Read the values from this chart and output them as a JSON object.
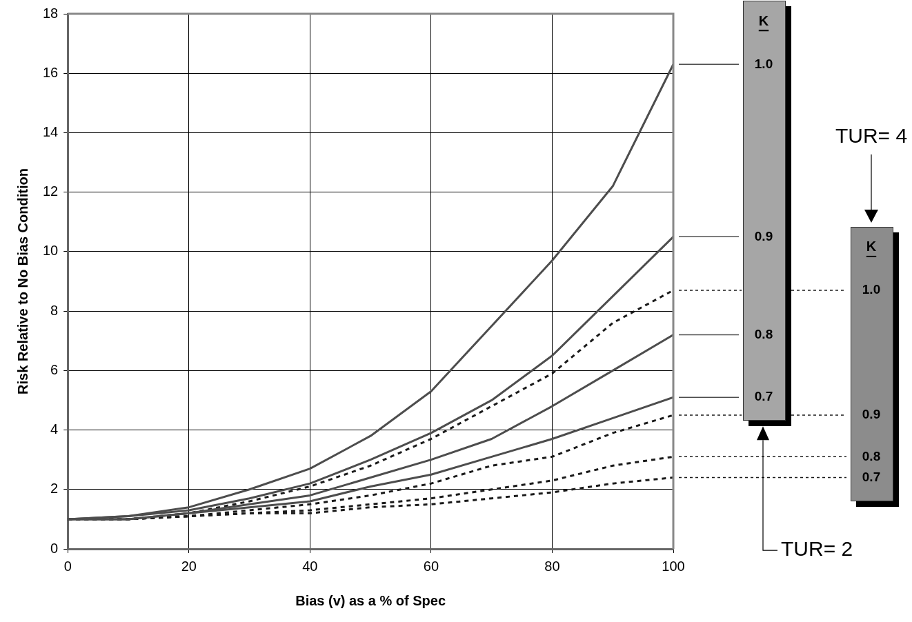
{
  "chart_data": {
    "type": "line",
    "xlabel": "Bias (v) as a % of Spec",
    "ylabel": "Risk Relative to No Bias Condition",
    "legend_title": "K",
    "annotations": [
      "TUR= 2",
      "TUR= 4"
    ],
    "x": [
      0,
      10,
      20,
      30,
      40,
      50,
      60,
      70,
      80,
      90,
      100
    ],
    "xlim": [
      0,
      100
    ],
    "xticks": [
      0,
      20,
      40,
      60,
      80,
      100
    ],
    "ylim": [
      0,
      18
    ],
    "yticks": [
      0,
      2,
      4,
      6,
      8,
      10,
      12,
      14,
      16,
      18
    ],
    "grid": true,
    "legend": "right",
    "marker": "none",
    "series": [
      {
        "name": "1.0",
        "color": "#4d4d4d",
        "line_style": "solid",
        "values": [
          1.0,
          1.1,
          1.4,
          2.0,
          2.7,
          3.8,
          5.3,
          7.5,
          9.7,
          12.2,
          16.3
        ]
      },
      {
        "name": "0.9",
        "color": "#4d4d4d",
        "line_style": "solid",
        "values": [
          1.0,
          1.1,
          1.3,
          1.7,
          2.2,
          3.0,
          3.9,
          5.0,
          6.5,
          8.5,
          10.5
        ]
      },
      {
        "name": "0.8",
        "color": "#4d4d4d",
        "line_style": "solid",
        "values": [
          1.0,
          1.0,
          1.2,
          1.5,
          1.8,
          2.4,
          3.0,
          3.7,
          4.8,
          6.0,
          7.2
        ]
      },
      {
        "name": "0.7",
        "color": "#4d4d4d",
        "line_style": "solid",
        "values": [
          1.0,
          1.0,
          1.2,
          1.4,
          1.6,
          2.1,
          2.5,
          3.1,
          3.7,
          4.4,
          5.1
        ]
      },
      {
        "name": "1.0",
        "color": "#1a1a1a",
        "line_style": "dashed",
        "values": [
          1.0,
          1.0,
          1.2,
          1.6,
          2.1,
          2.8,
          3.7,
          4.8,
          5.9,
          7.6,
          8.7
        ]
      },
      {
        "name": "0.9",
        "color": "#1a1a1a",
        "line_style": "dashed",
        "values": [
          1.0,
          1.0,
          1.1,
          1.3,
          1.5,
          1.8,
          2.2,
          2.8,
          3.1,
          3.9,
          4.5
        ]
      },
      {
        "name": "0.8",
        "color": "#1a1a1a",
        "line_style": "dashed",
        "values": [
          1.0,
          1.0,
          1.1,
          1.2,
          1.3,
          1.5,
          1.7,
          2.0,
          2.3,
          2.8,
          3.1
        ]
      },
      {
        "name": "0.7",
        "color": "#1a1a1a",
        "line_style": "dashed",
        "values": [
          1.0,
          1.0,
          1.1,
          1.2,
          1.2,
          1.4,
          1.5,
          1.7,
          1.9,
          2.2,
          2.4
        ]
      }
    ]
  }
}
